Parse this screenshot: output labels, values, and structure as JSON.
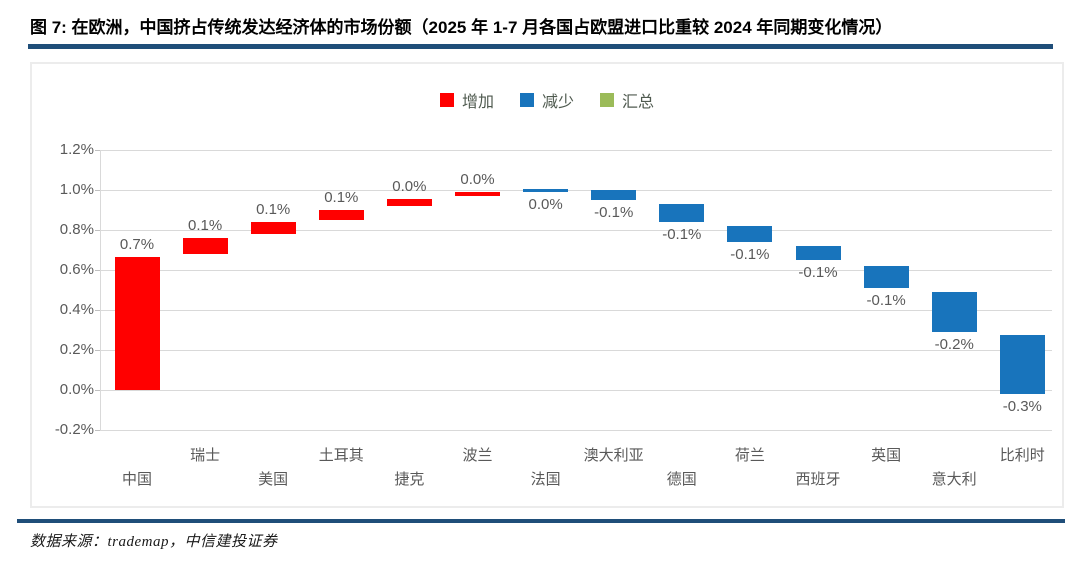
{
  "header": {
    "title": "图 7: 在欧洲，中国挤占传统发达经济体的市场份额（2025 年 1-7 月各国占欧盟进口比重较 2024 年同期变化情况）"
  },
  "footer": {
    "source": "数据来源：trademap，中信建投证券"
  },
  "legend": {
    "items": [
      {
        "key": "increase",
        "label": "增加",
        "color": "#FF0000"
      },
      {
        "key": "decrease",
        "label": "减少",
        "color": "#1874BC"
      },
      {
        "key": "total",
        "label": "汇总",
        "color": "#9BBB59"
      }
    ]
  },
  "chart_data": {
    "type": "bar",
    "subtype": "waterfall",
    "title": "图 7: 在欧洲，中国挤占传统发达经济体的市场份额（2025 年 1-7 月各国占欧盟进口比重较 2024 年同期变化情况）",
    "unit": "percent-point share of EU imports, 2025 Jan-Jul vs 2024 same period",
    "ylim": [
      -0.2,
      1.2
    ],
    "grid": "horizontal",
    "legend_position": "top-center",
    "yticks": [
      {
        "value": 1.2,
        "label": "1.2%"
      },
      {
        "value": 1.0,
        "label": "1.0%"
      },
      {
        "value": 0.8,
        "label": "0.8%"
      },
      {
        "value": 0.6,
        "label": "0.6%"
      },
      {
        "value": 0.4,
        "label": "0.4%"
      },
      {
        "value": 0.2,
        "label": "0.2%"
      },
      {
        "value": 0.0,
        "label": "0.0%"
      },
      {
        "value": -0.2,
        "label": "-0.2%"
      }
    ],
    "categories": [
      "中国",
      "瑞士",
      "美国",
      "土耳其",
      "捷克",
      "波兰",
      "法国",
      "澳大利亚",
      "德国",
      "荷兰",
      "西班牙",
      "英国",
      "意大利",
      "比利时"
    ],
    "colors": {
      "increase": "#FF0000",
      "decrease": "#1874BC",
      "total": "#9BBB59",
      "grid": "#D9D9D9",
      "axis_text": "#595959",
      "rule": "#1F4E79"
    },
    "bars": [
      {
        "id": "china",
        "category": "中国",
        "direction": "increase",
        "label": "0.7%",
        "from": 0.0,
        "to": 0.665
      },
      {
        "id": "switzerland",
        "category": "瑞士",
        "direction": "increase",
        "label": "0.1%",
        "from": 0.68,
        "to": 0.76
      },
      {
        "id": "usa",
        "category": "美国",
        "direction": "increase",
        "label": "0.1%",
        "from": 0.78,
        "to": 0.84
      },
      {
        "id": "turkey",
        "category": "土耳其",
        "direction": "increase",
        "label": "0.1%",
        "from": 0.85,
        "to": 0.9
      },
      {
        "id": "czech",
        "category": "捷克",
        "direction": "increase",
        "label": "0.0%",
        "from": 0.92,
        "to": 0.955
      },
      {
        "id": "poland",
        "category": "波兰",
        "direction": "increase",
        "label": "0.0%",
        "from": 0.97,
        "to": 0.99
      },
      {
        "id": "france",
        "category": "法国",
        "direction": "decrease",
        "label": "0.0%",
        "from": 1.005,
        "to": 0.99
      },
      {
        "id": "australia",
        "category": "澳大利亚",
        "direction": "decrease",
        "label": "-0.1%",
        "from": 1.0,
        "to": 0.95
      },
      {
        "id": "germany",
        "category": "德国",
        "direction": "decrease",
        "label": "-0.1%",
        "from": 0.93,
        "to": 0.84
      },
      {
        "id": "netherlands",
        "category": "荷兰",
        "direction": "decrease",
        "label": "-0.1%",
        "from": 0.82,
        "to": 0.74
      },
      {
        "id": "spain",
        "category": "西班牙",
        "direction": "decrease",
        "label": "-0.1%",
        "from": 0.72,
        "to": 0.65
      },
      {
        "id": "uk",
        "category": "英国",
        "direction": "decrease",
        "label": "-0.1%",
        "from": 0.62,
        "to": 0.51
      },
      {
        "id": "italy",
        "category": "意大利",
        "direction": "decrease",
        "label": "-0.2%",
        "from": 0.49,
        "to": 0.29
      },
      {
        "id": "belgium",
        "category": "比利时",
        "direction": "decrease",
        "label": "-0.3%",
        "from": 0.275,
        "to": -0.02
      }
    ]
  }
}
